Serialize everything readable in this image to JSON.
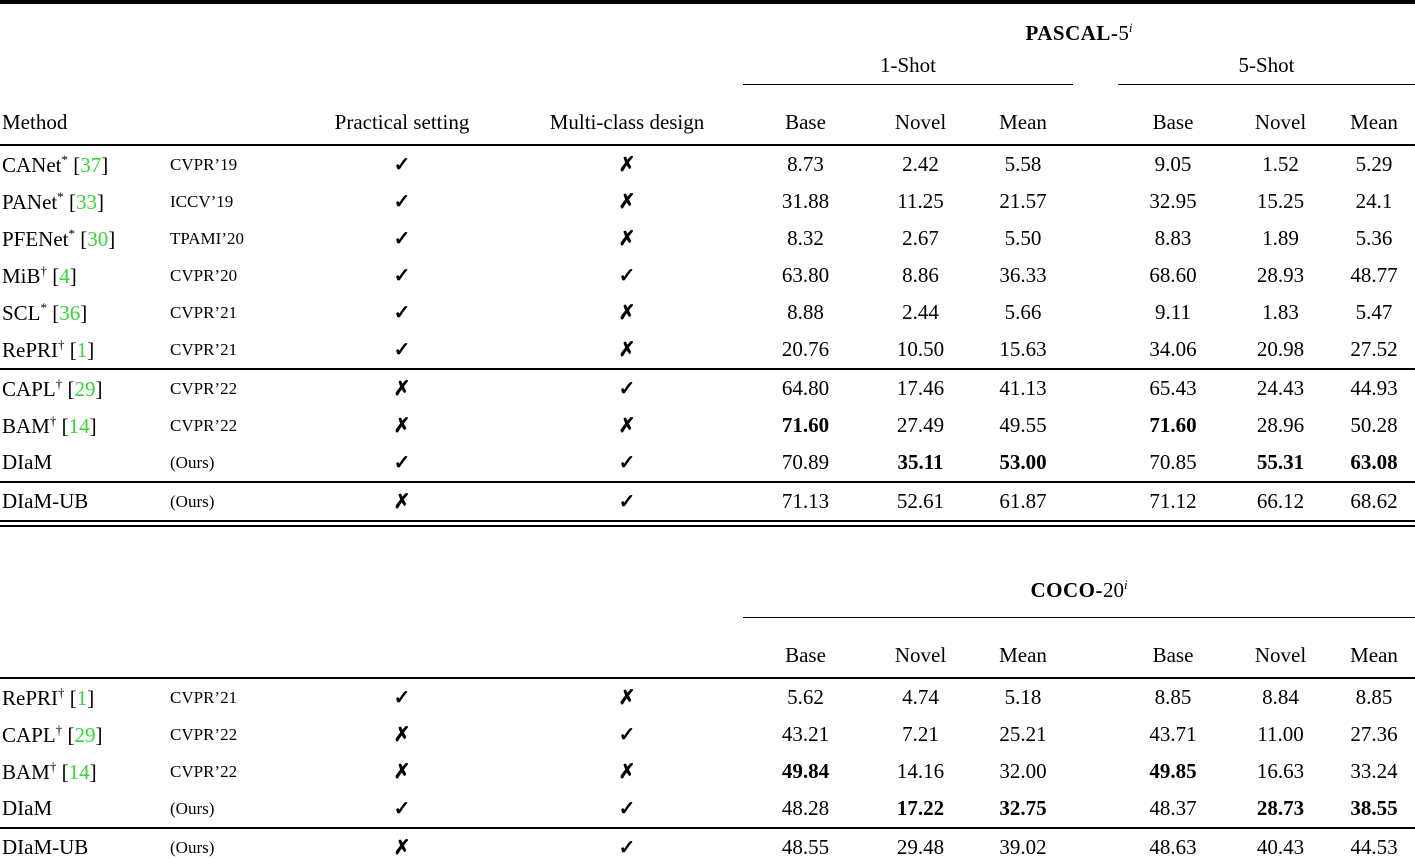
{
  "colors": {
    "citation_green": "#33D833",
    "text": "#000000",
    "background": "#ffffff"
  },
  "glyphs": {
    "check": "✓",
    "cross": "✗"
  },
  "columns": {
    "method": "Method",
    "practical": "Practical setting",
    "multiclass": "Multi-class design",
    "subcols": [
      "Base",
      "Novel",
      "Mean",
      "Base",
      "Novel",
      "Mean"
    ]
  },
  "tables": [
    {
      "dataset_prefix": "PASCAL-",
      "dataset_num": "5",
      "dataset_sup": "i",
      "shot_groups": [
        "1-Shot",
        "5-Shot"
      ],
      "groups": [
        {
          "rows": [
            {
              "method": "CANet",
              "sup": "*",
              "ref": "37",
              "venue": "CVPR’19",
              "practical": true,
              "multiclass": false,
              "values": [
                "8.73",
                "2.42",
                "5.58",
                "9.05",
                "1.52",
                "5.29"
              ],
              "bold": [
                0,
                0,
                0,
                0,
                0,
                0
              ]
            },
            {
              "method": "PANet",
              "sup": "*",
              "ref": "33",
              "venue": "ICCV’19",
              "practical": true,
              "multiclass": false,
              "values": [
                "31.88",
                "11.25",
                "21.57",
                "32.95",
                "15.25",
                "24.1"
              ],
              "bold": [
                0,
                0,
                0,
                0,
                0,
                0
              ]
            },
            {
              "method": "PFENet",
              "sup": "*",
              "ref": "30",
              "venue": "TPAMI’20",
              "practical": true,
              "multiclass": false,
              "values": [
                "8.32",
                "2.67",
                "5.50",
                "8.83",
                "1.89",
                "5.36"
              ],
              "bold": [
                0,
                0,
                0,
                0,
                0,
                0
              ]
            },
            {
              "method": "MiB",
              "sup": "†",
              "ref": "4",
              "venue": "CVPR’20",
              "practical": true,
              "multiclass": true,
              "values": [
                "63.80",
                "8.86",
                "36.33",
                "68.60",
                "28.93",
                "48.77"
              ],
              "bold": [
                0,
                0,
                0,
                0,
                0,
                0
              ]
            },
            {
              "method": "SCL",
              "sup": "*",
              "ref": "36",
              "venue": "CVPR’21",
              "practical": true,
              "multiclass": false,
              "values": [
                "8.88",
                "2.44",
                "5.66",
                "9.11",
                "1.83",
                "5.47"
              ],
              "bold": [
                0,
                0,
                0,
                0,
                0,
                0
              ]
            },
            {
              "method": "RePRI",
              "sup": "†",
              "ref": "1",
              "venue": "CVPR’21",
              "practical": true,
              "multiclass": false,
              "values": [
                "20.76",
                "10.50",
                "15.63",
                "34.06",
                "20.98",
                "27.52"
              ],
              "bold": [
                0,
                0,
                0,
                0,
                0,
                0
              ]
            }
          ]
        },
        {
          "rows": [
            {
              "method": "CAPL",
              "sup": "†",
              "ref": "29",
              "venue": "CVPR’22",
              "practical": false,
              "multiclass": true,
              "values": [
                "64.80",
                "17.46",
                "41.13",
                "65.43",
                "24.43",
                "44.93"
              ],
              "bold": [
                0,
                0,
                0,
                0,
                0,
                0
              ]
            },
            {
              "method": "BAM",
              "sup": "†",
              "ref": "14",
              "venue": "CVPR’22",
              "practical": false,
              "multiclass": false,
              "values": [
                "71.60",
                "27.49",
                "49.55",
                "71.60",
                "28.96",
                "50.28"
              ],
              "bold": [
                1,
                0,
                0,
                1,
                0,
                0
              ]
            },
            {
              "method": "DIaM",
              "sup": "",
              "ref": "",
              "venue": "(Ours)",
              "practical": true,
              "multiclass": true,
              "values": [
                "70.89",
                "35.11",
                "53.00",
                "70.85",
                "55.31",
                "63.08"
              ],
              "bold": [
                0,
                1,
                1,
                0,
                1,
                1
              ]
            }
          ]
        },
        {
          "rows": [
            {
              "method": "DIaM-UB",
              "sup": "",
              "ref": "",
              "venue": "(Ours)",
              "practical": false,
              "multiclass": true,
              "values": [
                "71.13",
                "52.61",
                "61.87",
                "71.12",
                "66.12",
                "68.62"
              ],
              "bold": [
                0,
                0,
                0,
                0,
                0,
                0
              ]
            }
          ]
        }
      ]
    },
    {
      "dataset_prefix": "COCO-",
      "dataset_num": "20",
      "dataset_sup": "i",
      "shot_groups": [],
      "groups": [
        {
          "rows": [
            {
              "method": "RePRI",
              "sup": "†",
              "ref": "1",
              "venue": "CVPR’21",
              "practical": true,
              "multiclass": false,
              "values": [
                "5.62",
                "4.74",
                "5.18",
                "8.85",
                "8.84",
                "8.85"
              ],
              "bold": [
                0,
                0,
                0,
                0,
                0,
                0
              ]
            },
            {
              "method": "CAPL",
              "sup": "†",
              "ref": "29",
              "venue": "CVPR’22",
              "practical": false,
              "multiclass": true,
              "values": [
                "43.21",
                "7.21",
                "25.21",
                "43.71",
                "11.00",
                "27.36"
              ],
              "bold": [
                0,
                0,
                0,
                0,
                0,
                0
              ]
            },
            {
              "method": "BAM",
              "sup": "†",
              "ref": "14",
              "venue": "CVPR’22",
              "practical": false,
              "multiclass": false,
              "values": [
                "49.84",
                "14.16",
                "32.00",
                "49.85",
                "16.63",
                "33.24"
              ],
              "bold": [
                1,
                0,
                0,
                1,
                0,
                0
              ]
            },
            {
              "method": "DIaM",
              "sup": "",
              "ref": "",
              "venue": "(Ours)",
              "practical": true,
              "multiclass": true,
              "values": [
                "48.28",
                "17.22",
                "32.75",
                "48.37",
                "28.73",
                "38.55"
              ],
              "bold": [
                0,
                1,
                1,
                0,
                1,
                1
              ]
            }
          ]
        },
        {
          "rows": [
            {
              "method": "DIaM-UB",
              "sup": "",
              "ref": "",
              "venue": "(Ours)",
              "practical": false,
              "multiclass": true,
              "values": [
                "48.55",
                "29.48",
                "39.02",
                "48.63",
                "40.43",
                "44.53"
              ],
              "bold": [
                0,
                0,
                0,
                0,
                0,
                0
              ]
            }
          ]
        }
      ]
    }
  ]
}
